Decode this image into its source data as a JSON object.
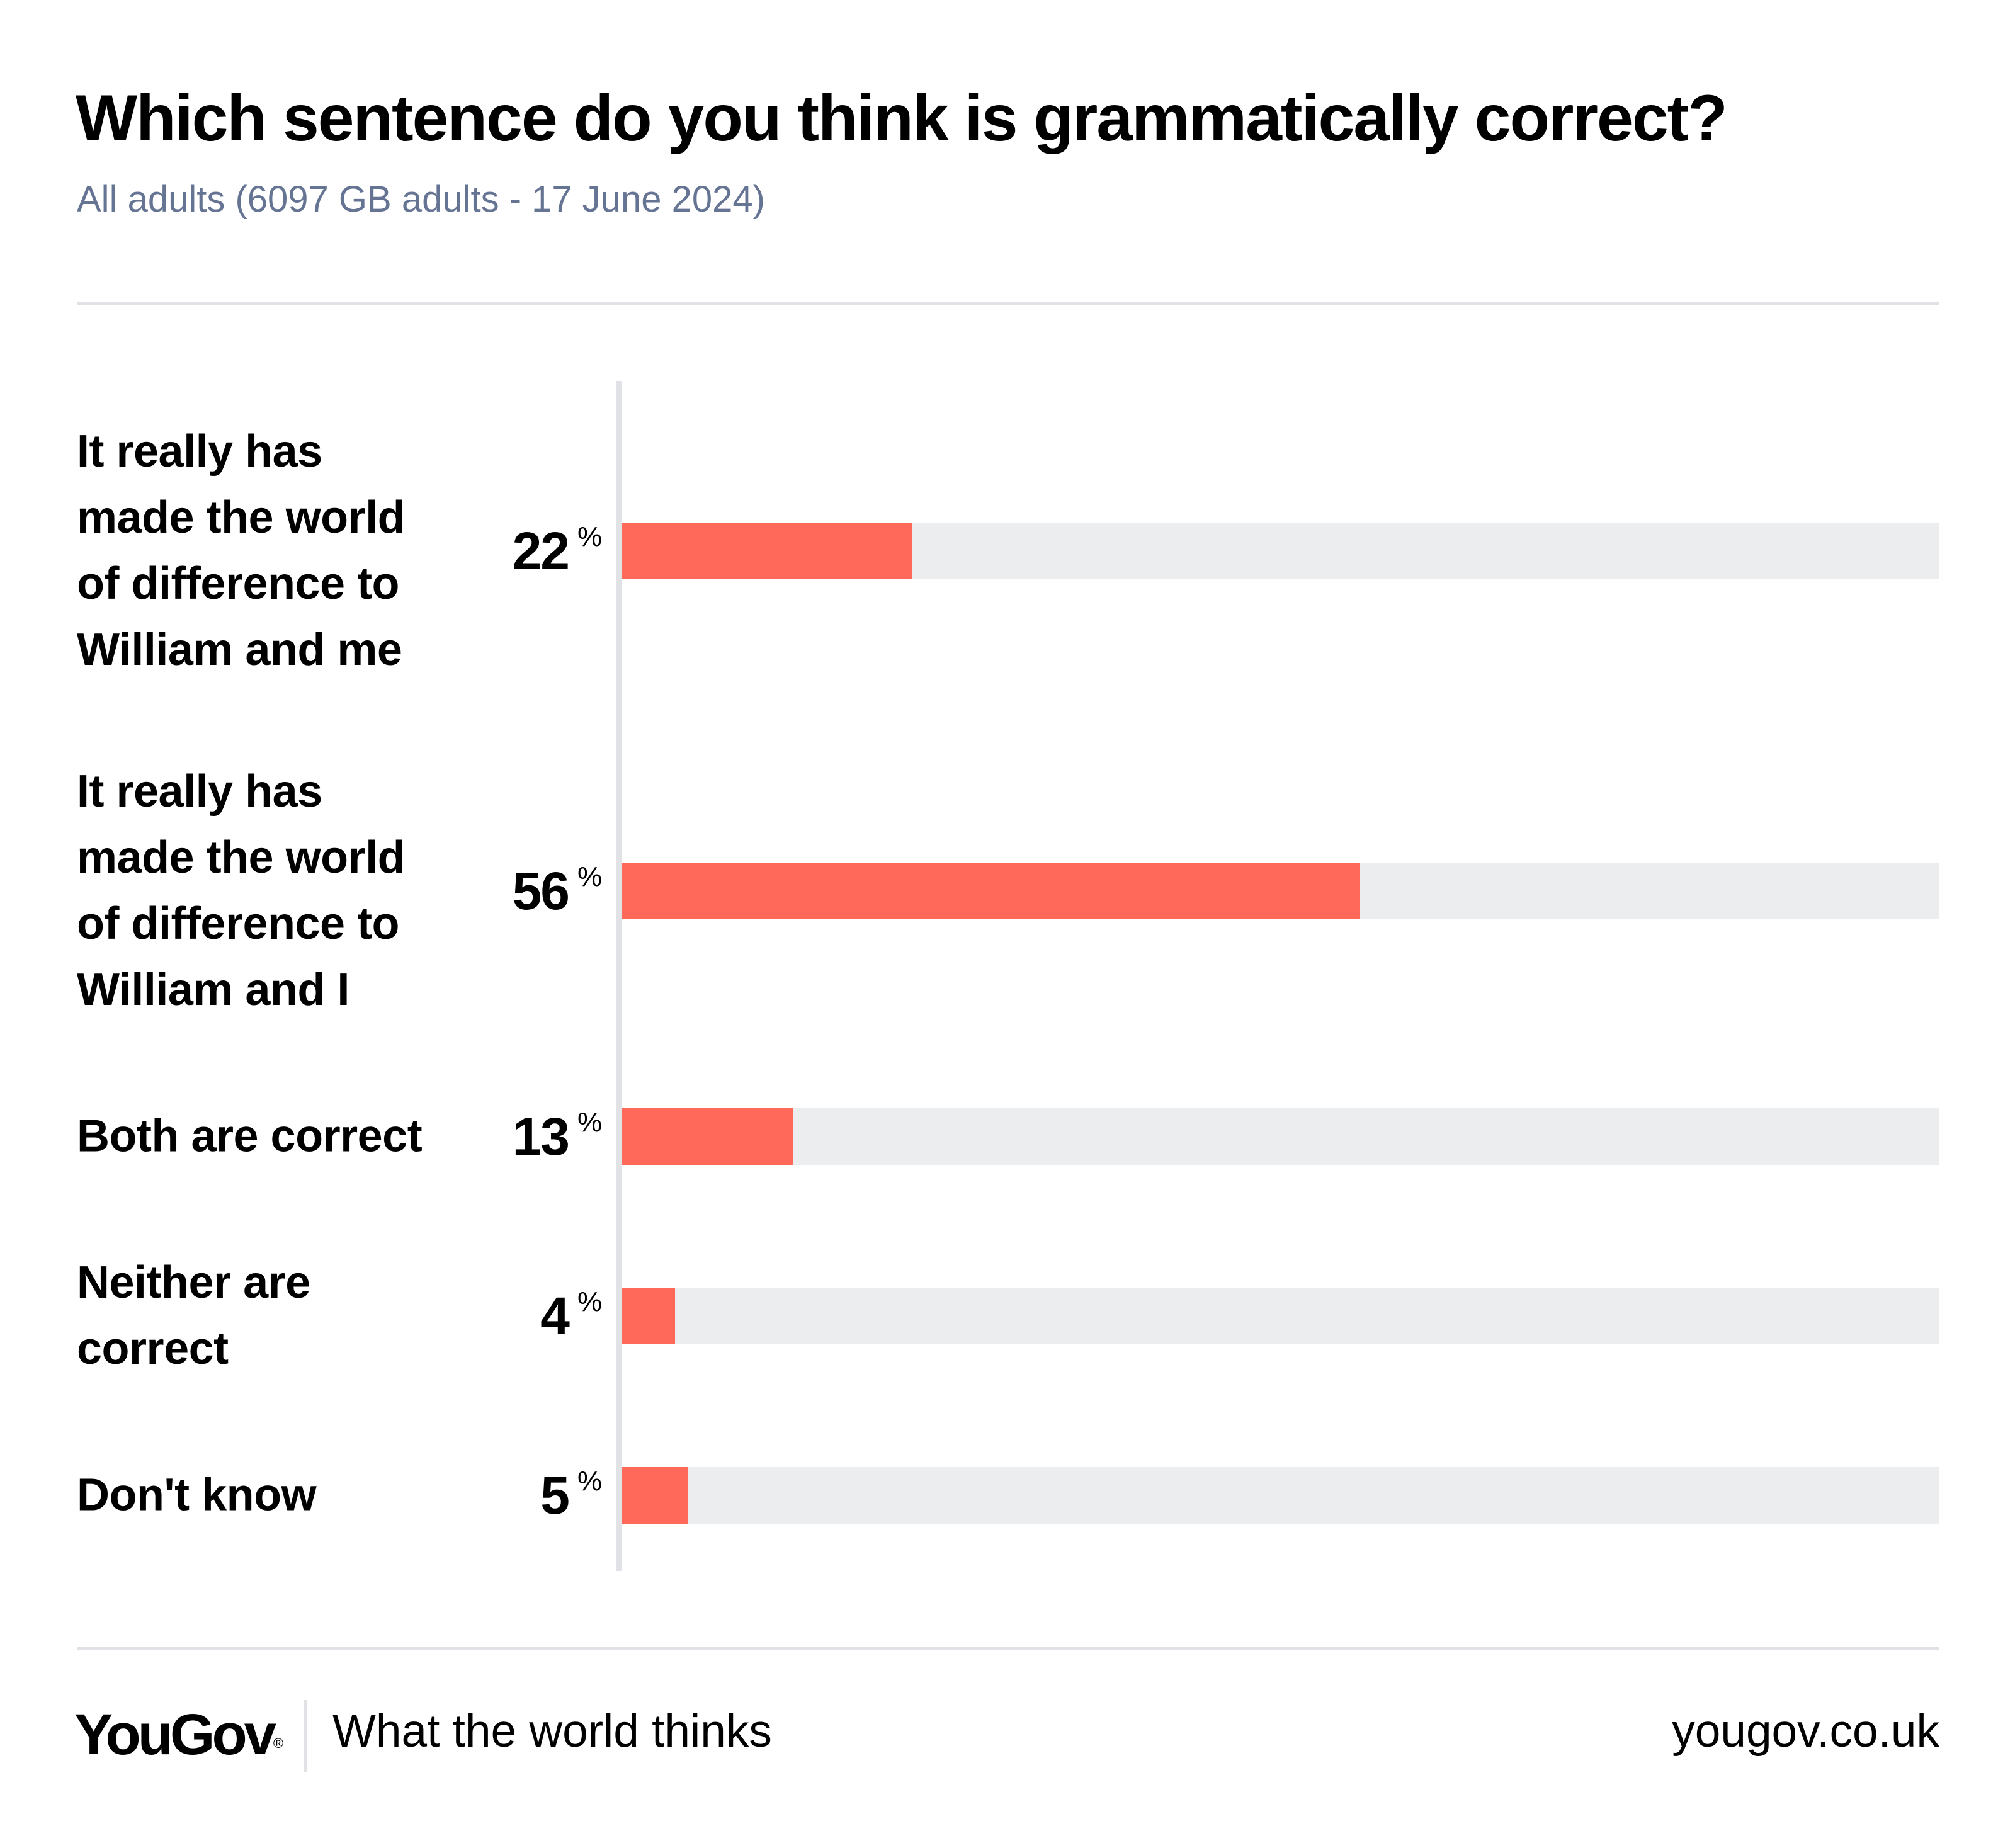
{
  "header": {
    "title": "Which sentence do you think is grammatically correct?",
    "subtitle": "All adults (6097 GB adults - 17 June 2024)"
  },
  "colors": {
    "bar_fill": "#ff6959",
    "bar_track": "#ecedee",
    "rule": "#e0e2e5",
    "subtitle": "#667494"
  },
  "rows": [
    {
      "label_lines": [
        "It really has",
        "made the world",
        "of difference to",
        "William and me"
      ],
      "value": "22",
      "unit": "%",
      "pct": 22
    },
    {
      "label_lines": [
        "It really has",
        "made the world",
        "of difference to",
        "William and I"
      ],
      "value": "56",
      "unit": "%",
      "pct": 56
    },
    {
      "label_lines": [
        "Both are correct"
      ],
      "value": "13",
      "unit": "%",
      "pct": 13
    },
    {
      "label_lines": [
        "Neither are",
        "correct"
      ],
      "value": "4",
      "unit": "%",
      "pct": 4
    },
    {
      "label_lines": [
        "Don't know"
      ],
      "value": "5",
      "unit": "%",
      "pct": 5
    }
  ],
  "footer": {
    "logo": "YouGov",
    "logo_mark": "®",
    "tagline": "What the world thinks",
    "site": "yougov.co.uk"
  },
  "chart_data": {
    "type": "bar",
    "orientation": "horizontal",
    "title": "Which sentence do you think is grammatically correct?",
    "subtitle": "All adults (6097 GB adults - 17 June 2024)",
    "categories": [
      "It really has made the world of difference to William and me",
      "It really has made the world of difference to William and I",
      "Both are correct",
      "Neither are correct",
      "Don't know"
    ],
    "values": [
      22,
      56,
      13,
      4,
      5
    ],
    "unit": "%",
    "xlim": [
      0,
      100
    ],
    "xlabel": "",
    "ylabel": "",
    "grid": false,
    "legend": null
  }
}
